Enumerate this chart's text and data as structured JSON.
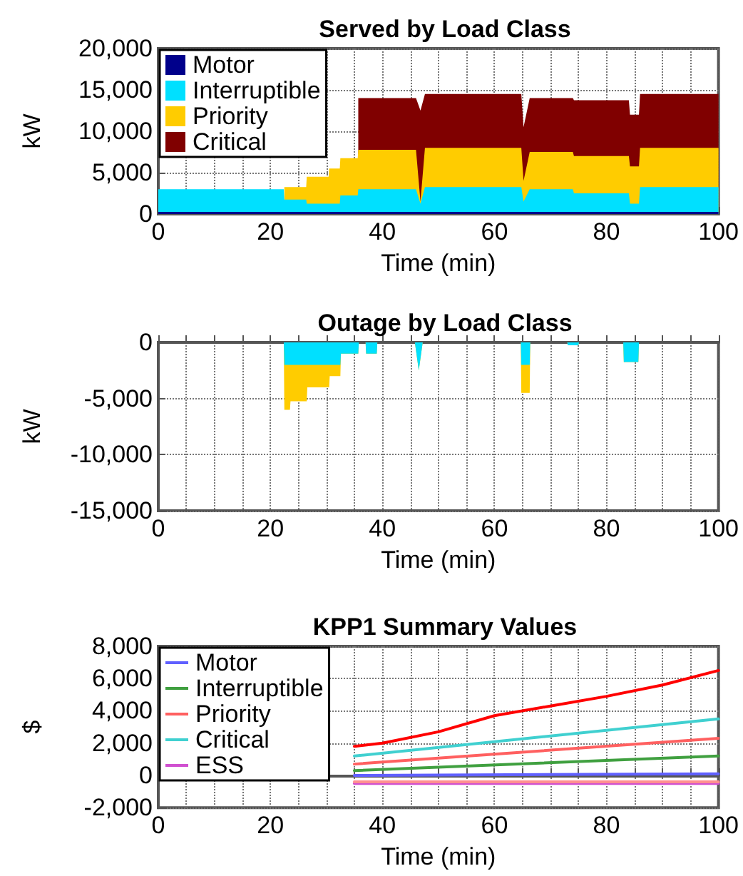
{
  "chart_data": [
    {
      "type": "area",
      "stacked": true,
      "title": "Served by Load Class",
      "xlabel": "Time (min)",
      "ylabel": "kW",
      "legend": "top left",
      "grid": true,
      "x": [
        0,
        22.4,
        22.5,
        26.4,
        26.5,
        30.4,
        30.5,
        32.4,
        32.5,
        35.6,
        35.7,
        46,
        46.8,
        47.6,
        64.8,
        65.2,
        66.3,
        74,
        74.2,
        84,
        84.2,
        85.8,
        86,
        100
      ],
      "xlim": [
        0,
        100
      ],
      "xticks": [
        0,
        {
          "value": 5,
          "label": null
        },
        {
          "value": 10,
          "label": null
        },
        {
          "value": 15,
          "label": null
        },
        20,
        {
          "value": 25,
          "label": null
        },
        {
          "value": 30,
          "label": null
        },
        {
          "value": 35,
          "label": null
        },
        40,
        {
          "value": 45,
          "label": null
        },
        {
          "value": 50,
          "label": null
        },
        {
          "value": 55,
          "label": null
        },
        60,
        {
          "value": 65,
          "label": null
        },
        {
          "value": 70,
          "label": null
        },
        {
          "value": 75,
          "label": null
        },
        80,
        {
          "value": 85,
          "label": null
        },
        {
          "value": 90,
          "label": null
        },
        {
          "value": 95,
          "label": null
        },
        100
      ],
      "ylim": [
        0,
        20000
      ],
      "yticks": [
        {
          "value": 0,
          "label": "0"
        },
        {
          "value": 5000,
          "label": "5,000"
        },
        {
          "value": 10000,
          "label": "10,000"
        },
        {
          "value": 15000,
          "label": "15,000"
        },
        {
          "value": 20000,
          "label": "20,000"
        }
      ],
      "series": [
        {
          "name": "Motor",
          "color": "#00008b",
          "values": [
            250,
            250,
            250,
            250,
            250,
            250,
            250,
            250,
            250,
            250,
            250,
            250,
            250,
            250,
            250,
            250,
            250,
            250,
            250,
            250,
            250,
            250,
            250,
            250
          ]
        },
        {
          "name": "Interruptible",
          "color": "#00e0ff",
          "values": [
            2750,
            2750,
            1500,
            1500,
            1000,
            1000,
            1000,
            1000,
            2000,
            2000,
            2750,
            2750,
            1000,
            3000,
            3000,
            1250,
            2750,
            2750,
            2250,
            2250,
            1000,
            1000,
            3000,
            3000
          ]
        },
        {
          "name": "Priority",
          "color": "#ffcc00",
          "values": [
            null,
            null,
            1500,
            1500,
            3250,
            3250,
            4250,
            4250,
            4500,
            4500,
            4750,
            4750,
            250,
            4750,
            4750,
            2500,
            4500,
            4500,
            4500,
            4500,
            4500,
            4500,
            4750,
            4750
          ]
        },
        {
          "name": "Critical",
          "color": "#800000",
          "values": [
            null,
            null,
            null,
            null,
            null,
            null,
            null,
            null,
            null,
            null,
            6250,
            6250,
            11000,
            6500,
            6500,
            6500,
            6500,
            6500,
            6750,
            6750,
            6250,
            6250,
            6500,
            6500
          ]
        }
      ]
    },
    {
      "type": "area",
      "stacked": true,
      "title": "Outage by Load Class",
      "xlabel": "Time (min)",
      "ylabel": "kW",
      "grid": true,
      "x": [
        0,
        22.4,
        22.5,
        23.5,
        23.6,
        26.5,
        26.6,
        30.5,
        30.6,
        32.5,
        32.6,
        35.7,
        35.8,
        37,
        37.1,
        39,
        39.1,
        45.8,
        46.5,
        47.2,
        64.7,
        64.8,
        66.3,
        66.4,
        73,
        73.1,
        75,
        75.1,
        83,
        83.1,
        85.7,
        85.8,
        100
      ],
      "xlim": [
        0,
        100
      ],
      "xticks": [
        0,
        {
          "value": 5,
          "label": null
        },
        {
          "value": 10,
          "label": null
        },
        {
          "value": 15,
          "label": null
        },
        20,
        {
          "value": 25,
          "label": null
        },
        {
          "value": 30,
          "label": null
        },
        {
          "value": 35,
          "label": null
        },
        40,
        {
          "value": 45,
          "label": null
        },
        {
          "value": 50,
          "label": null
        },
        {
          "value": 55,
          "label": null
        },
        60,
        {
          "value": 65,
          "label": null
        },
        {
          "value": 70,
          "label": null
        },
        {
          "value": 75,
          "label": null
        },
        80,
        {
          "value": 85,
          "label": null
        },
        {
          "value": 90,
          "label": null
        },
        {
          "value": 95,
          "label": null
        },
        100
      ],
      "ylim": [
        -15000,
        0
      ],
      "yticks": [
        {
          "value": -15000,
          "label": "-15,000"
        },
        {
          "value": -10000,
          "label": "-10,000"
        },
        {
          "value": -5000,
          "label": "-5,000"
        },
        {
          "value": 0,
          "label": "0"
        }
      ],
      "series": [
        {
          "color": "#00e0ff",
          "values": [
            0,
            0,
            -2000,
            -2000,
            -2000,
            -2000,
            -2000,
            -2000,
            -2000,
            -2000,
            -1000,
            -1000,
            0,
            0,
            -1000,
            -1000,
            0,
            0,
            -2500,
            0,
            0,
            -2000,
            -2000,
            0,
            0,
            -250,
            -250,
            0,
            0,
            -1750,
            -1750,
            0,
            0
          ]
        },
        {
          "color": "#ffcc00",
          "values": [
            0,
            0,
            -4000,
            -4000,
            -3250,
            -3250,
            -2000,
            -2000,
            -1000,
            -1000,
            0,
            0,
            0,
            0,
            0,
            0,
            0,
            0,
            0,
            0,
            0,
            -2500,
            -2500,
            0,
            0,
            0,
            0,
            0,
            0,
            0,
            0,
            0,
            0
          ]
        }
      ]
    },
    {
      "type": "line",
      "title": "KPP1 Summary Values",
      "xlabel": "Time (min)",
      "ylabel": "$",
      "legend": "top left",
      "grid": true,
      "marker": "none",
      "line_style": "solid",
      "xlim": [
        0,
        100
      ],
      "xticks": [
        0,
        {
          "value": 5,
          "label": null
        },
        {
          "value": 10,
          "label": null
        },
        {
          "value": 15,
          "label": null
        },
        20,
        {
          "value": 25,
          "label": null
        },
        {
          "value": 30,
          "label": null
        },
        {
          "value": 35,
          "label": null
        },
        40,
        {
          "value": 45,
          "label": null
        },
        {
          "value": 50,
          "label": null
        },
        {
          "value": 55,
          "label": null
        },
        60,
        {
          "value": 65,
          "label": null
        },
        {
          "value": 70,
          "label": null
        },
        {
          "value": 75,
          "label": null
        },
        80,
        {
          "value": 85,
          "label": null
        },
        {
          "value": 90,
          "label": null
        },
        {
          "value": 95,
          "label": null
        },
        100
      ],
      "ylim": [
        -2000,
        8000
      ],
      "yticks": [
        {
          "value": -2000,
          "label": "-2,000"
        },
        {
          "value": 0,
          "label": "0"
        },
        {
          "value": 2000,
          "label": "2,000"
        },
        {
          "value": 4000,
          "label": "4,000"
        },
        {
          "value": 6000,
          "label": "6,000"
        },
        {
          "value": 8000,
          "label": "8,000"
        }
      ],
      "series": [
        {
          "name": "Motor",
          "color": "#6060ff",
          "x": [
            35,
            100
          ],
          "values": [
            0,
            100
          ]
        },
        {
          "name": "Interruptible",
          "color": "#40a040",
          "x": [
            35,
            100
          ],
          "values": [
            300,
            1200
          ]
        },
        {
          "name": "Priority",
          "color": "#ff6060",
          "x": [
            35,
            100
          ],
          "values": [
            700,
            2300
          ]
        },
        {
          "name": "Critical",
          "color": "#40d0d0",
          "x": [
            35,
            100
          ],
          "values": [
            1200,
            3500
          ]
        },
        {
          "name": "ESS",
          "color": "#d050d0",
          "x": [
            35,
            100
          ],
          "values": [
            -500,
            -500
          ]
        },
        {
          "color": "#ff9090",
          "x": [
            35,
            100
          ],
          "values": [
            -400,
            -400
          ]
        },
        {
          "color": "#ff0000",
          "x": [
            35,
            40,
            50,
            60,
            70,
            80,
            90,
            100
          ],
          "values": [
            1800,
            2000,
            2700,
            3700,
            4300,
            4900,
            5600,
            6500
          ]
        }
      ]
    }
  ]
}
